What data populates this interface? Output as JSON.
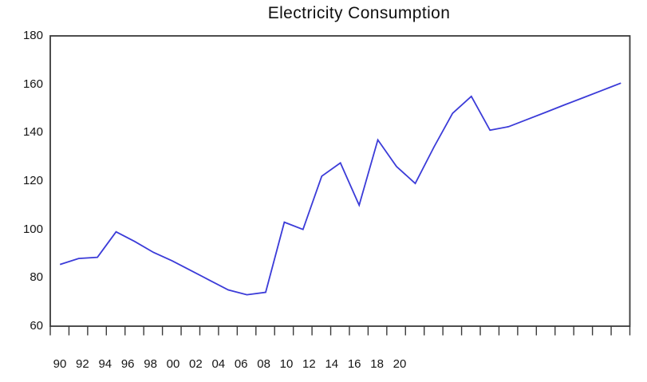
{
  "chart_data": {
    "type": "line",
    "title": "Electricity Consumption",
    "x": [
      1990,
      1991,
      1992,
      1993,
      1994,
      1995,
      1996,
      1997,
      1998,
      1999,
      2000,
      2001,
      2002,
      2003,
      2004,
      2005,
      2006,
      2007,
      2008,
      2009,
      2010,
      2011,
      2012,
      2013,
      2014,
      2015,
      2016,
      2017,
      2018,
      2019,
      2020
    ],
    "series": [
      {
        "name": "electricity-consumption",
        "values": [
          85.5,
          88,
          88.5,
          99,
          95,
          90.5,
          87,
          83,
          79,
          75,
          73,
          74,
          103,
          100,
          122,
          127.5,
          110,
          137,
          126,
          119,
          134,
          148,
          155,
          141,
          142.5,
          145.5,
          148.5,
          151.5,
          154.5,
          157.5,
          160.5
        ]
      }
    ],
    "ylim": [
      60,
      180
    ],
    "y_ticks": [
      "180",
      "160",
      "140",
      "120",
      "100",
      "80",
      "60"
    ],
    "y_tick_values": [
      180,
      160,
      140,
      120,
      100,
      80,
      60
    ],
    "x_tick_labels": [
      "90",
      "92",
      "94",
      "96",
      "98",
      "00",
      "02",
      "04",
      "06",
      "08",
      "10",
      "12",
      "14",
      "16",
      "18",
      "20"
    ],
    "grid": false,
    "legend_position": "none",
    "line_color": "#3b3bd8",
    "frame_color": "#3a3a3a",
    "label_color": "#151515"
  }
}
